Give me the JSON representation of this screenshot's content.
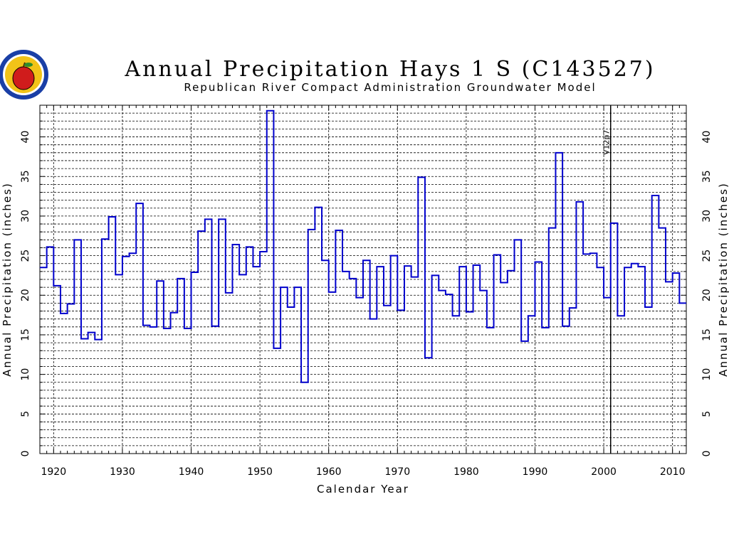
{
  "chart_data": {
    "type": "line",
    "step": true,
    "title": "Annual Precipitation Hays 1 S (C143527)",
    "subtitle": "Republican River Compact Administration Groundwater Model",
    "xlabel": "Calendar Year",
    "ylabel": "Annual Precipitation (inches)",
    "ylabel_right": "Annual Precipitation (inches)",
    "xlim": [
      1918,
      2012
    ],
    "ylim": [
      0,
      44
    ],
    "x_ticks": [
      1920,
      1930,
      1940,
      1950,
      1960,
      1970,
      1980,
      1990,
      2000,
      2010
    ],
    "y_ticks": [
      0,
      5,
      10,
      15,
      20,
      25,
      30,
      35,
      40
    ],
    "grid": true,
    "marker_line": {
      "x": 2001,
      "label": "V12p7"
    },
    "colors": {
      "line": "#0000cc",
      "grid": "#000000",
      "axis": "#000000"
    },
    "logo": {
      "name": "rrca-logo",
      "colors": [
        "#1a3fa6",
        "#f2c318",
        "#d01c1c",
        "#2e8b2e"
      ]
    },
    "series": [
      {
        "x": [
          1918,
          1919,
          1920,
          1921,
          1922,
          1923,
          1924,
          1925,
          1926,
          1927,
          1928,
          1929,
          1930,
          1931,
          1932,
          1933,
          1934,
          1935,
          1936,
          1937,
          1938,
          1939,
          1940,
          1941,
          1942,
          1943,
          1944,
          1945,
          1946,
          1947,
          1948,
          1949,
          1950,
          1951,
          1952,
          1953,
          1954,
          1955,
          1956,
          1957,
          1958,
          1959,
          1960,
          1961,
          1962,
          1963,
          1964,
          1965,
          1966,
          1967,
          1968,
          1969,
          1970,
          1971,
          1972,
          1973,
          1974,
          1975,
          1976,
          1977,
          1978,
          1979,
          1980,
          1981,
          1982,
          1983,
          1984,
          1985,
          1986,
          1987,
          1988,
          1989,
          1990,
          1991,
          1992,
          1993,
          1994,
          1995,
          1996,
          1997,
          1998,
          1999,
          2000,
          2001,
          2002,
          2003,
          2004,
          2005,
          2006,
          2007,
          2008,
          2009,
          2010,
          2011
        ],
        "values": [
          23.5,
          26.1,
          21.2,
          17.7,
          18.9,
          27.0,
          14.5,
          15.3,
          14.4,
          27.1,
          29.9,
          22.6,
          24.9,
          25.3,
          31.6,
          16.2,
          16.0,
          21.8,
          15.8,
          17.8,
          22.1,
          15.8,
          22.9,
          28.1,
          29.6,
          16.1,
          29.6,
          20.3,
          26.4,
          22.6,
          26.1,
          23.6,
          25.5,
          43.3,
          13.3,
          21.0,
          18.5,
          21.0,
          9.0,
          28.3,
          31.1,
          24.4,
          20.4,
          28.2,
          23.0,
          22.1,
          19.7,
          24.4,
          17.0,
          23.6,
          18.7,
          25.0,
          18.1,
          23.7,
          22.3,
          34.9,
          12.1,
          22.5,
          20.6,
          20.1,
          17.4,
          23.6,
          17.9,
          23.8,
          20.6,
          15.9,
          25.1,
          21.6,
          23.1,
          27.0,
          14.2,
          17.4,
          24.2,
          15.9,
          28.5,
          38.0,
          16.1,
          18.4,
          31.8,
          25.2,
          25.3,
          23.5,
          19.7,
          29.1,
          17.4,
          23.5,
          24.0,
          23.6,
          18.5,
          32.6,
          28.5,
          21.7,
          22.8,
          19.0
        ]
      }
    ]
  }
}
